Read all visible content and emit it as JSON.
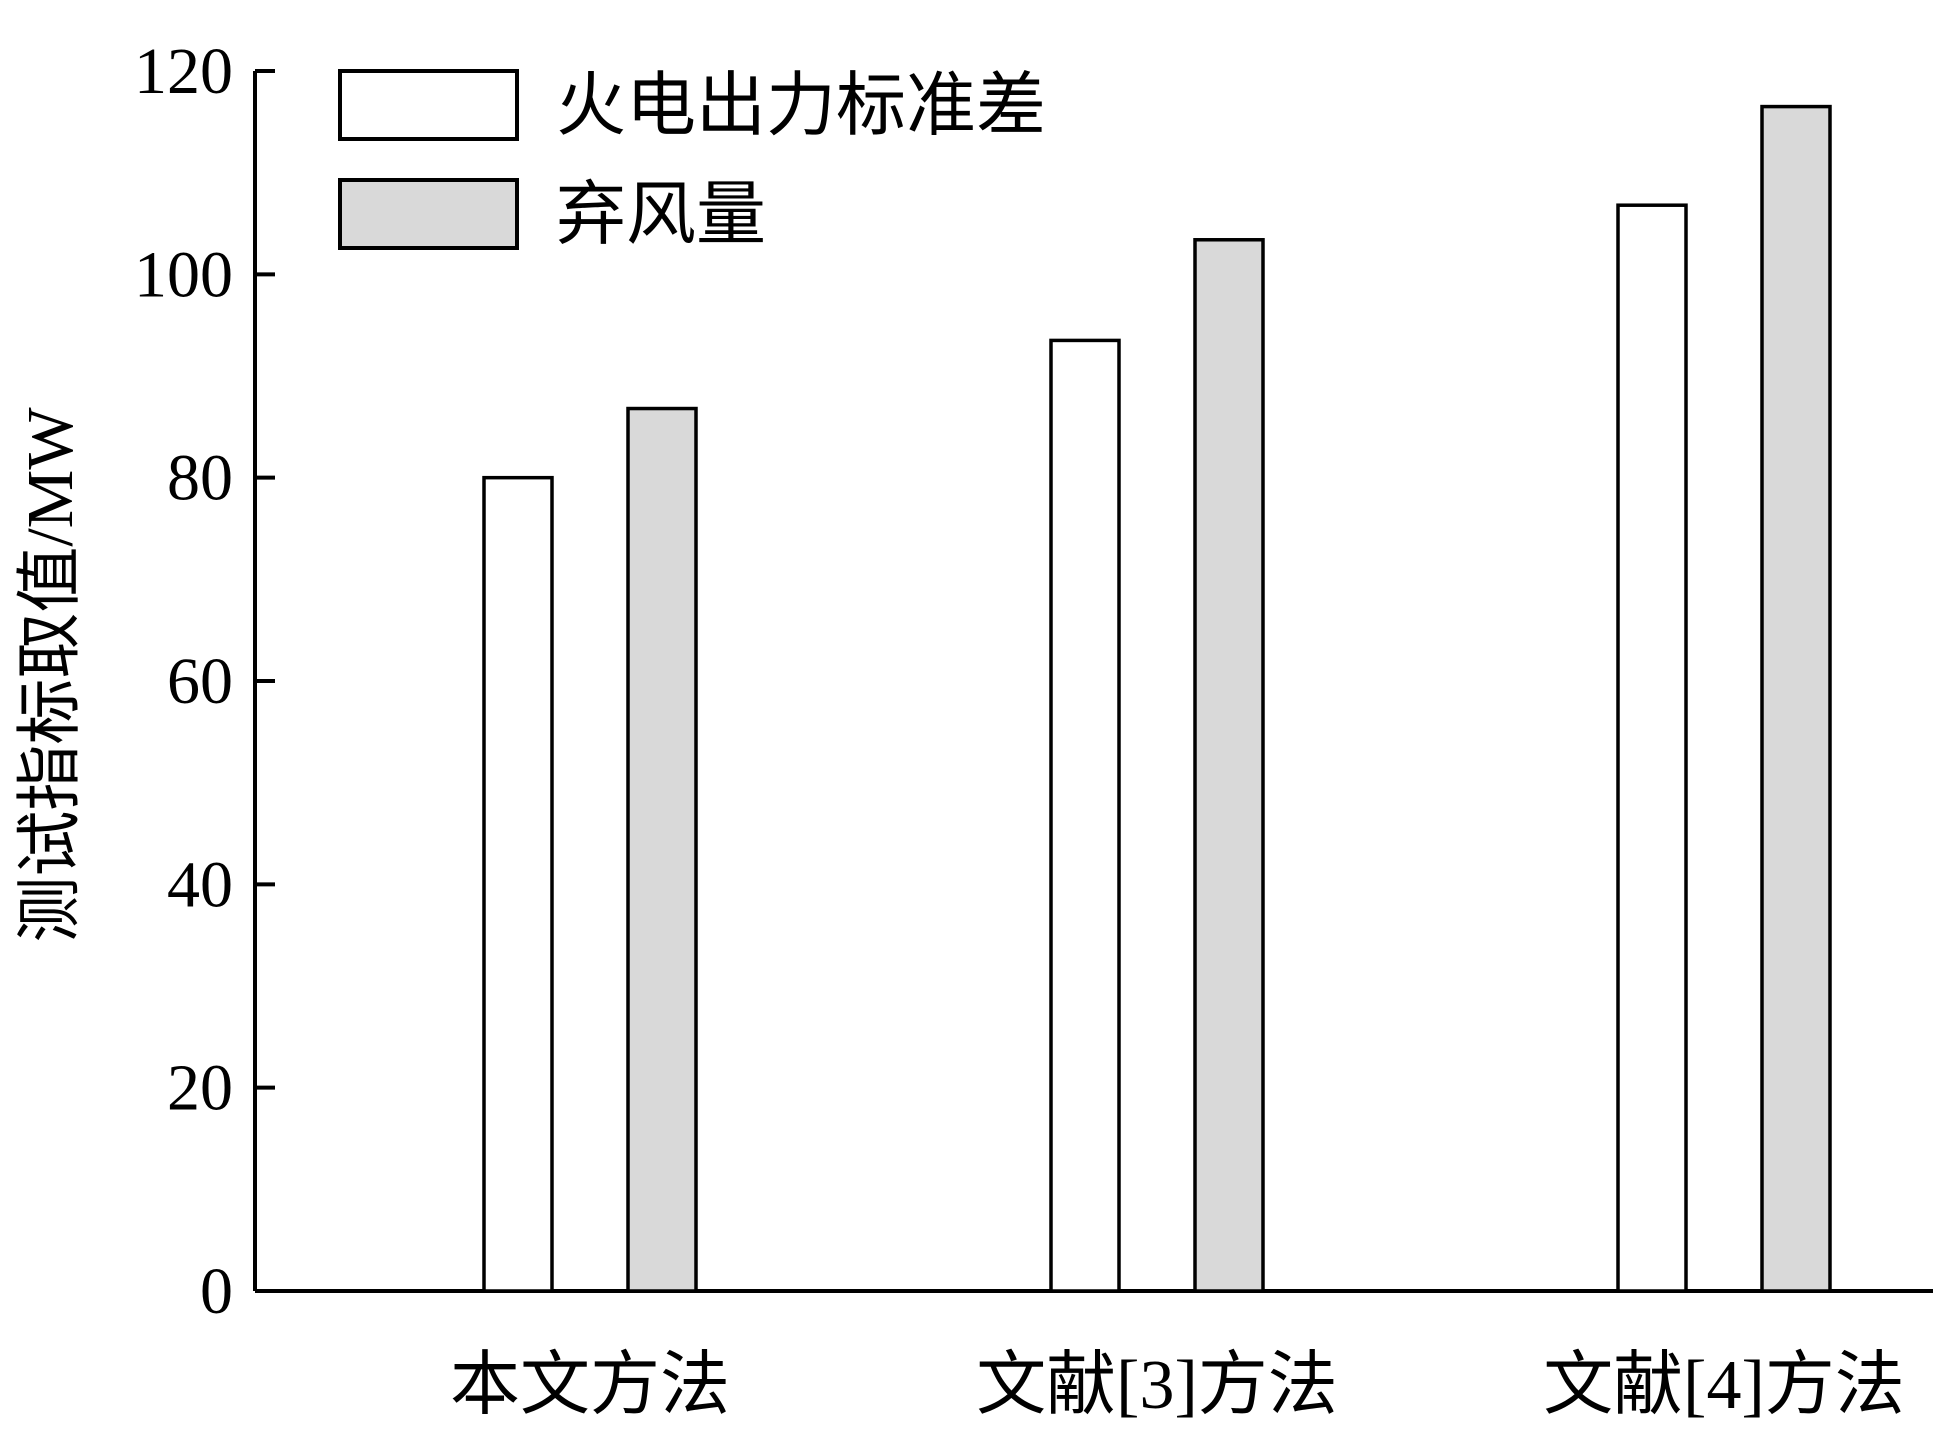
{
  "chart_data": {
    "type": "bar",
    "categories": [
      "本文方法",
      "文献[3]方法",
      "文献[4]方法"
    ],
    "series": [
      {
        "name": "火电出力标准差",
        "values": [
          80.0,
          93.5,
          106.8
        ],
        "color": "#ffffff"
      },
      {
        "name": "弃风量",
        "values": [
          86.8,
          103.4,
          116.5
        ],
        "color": "#d9d9d9"
      }
    ],
    "ylabel": "测试指标取值/MW",
    "xlabel": "",
    "ylim": [
      0,
      120
    ],
    "yticks": [
      0,
      20,
      40,
      60,
      80,
      100,
      120
    ],
    "grid": false,
    "legend_position": "top-left"
  }
}
